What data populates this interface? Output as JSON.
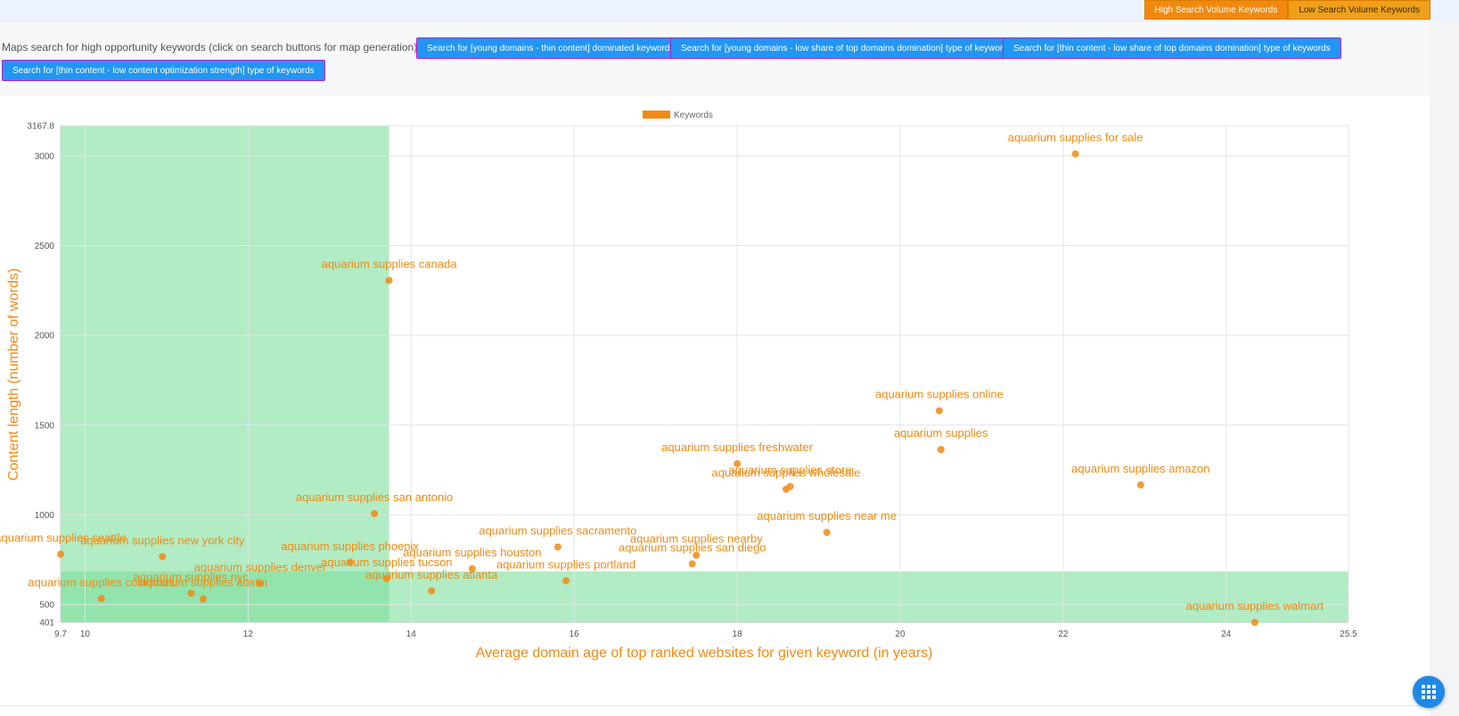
{
  "volume_toggle": {
    "high_label": "High Search Volume Keywords",
    "low_label": "Low Search Volume Keywords"
  },
  "toolbar": {
    "description": "Maps search for high opportunity keywords (click on search buttons for map generation)",
    "buttons": [
      "Search for [young domains - thin content] dominated keywords",
      "Search for [young domains - low share of top domains domination] type of keywords",
      "Search for [thin content - low share of top domains domination] type of keywords",
      "Search for [thin content - low content optimization strength] type of keywords"
    ]
  },
  "colors": {
    "accent": "#f28a12",
    "button_blue": "#2196f3",
    "zone_green": "#7ddf9d"
  },
  "chart_data": {
    "type": "scatter",
    "legend": {
      "label": "Keywords",
      "position": "top-center"
    },
    "xlabel": "Average domain age of top ranked websites for given keyword (in years)",
    "ylabel": "Content length (number of words)",
    "xlim": [
      9.7,
      25.5
    ],
    "ylim": [
      401,
      3167.8
    ],
    "xticks": [
      9.7,
      10,
      12,
      14,
      16,
      18,
      20,
      22,
      24,
      25.5
    ],
    "yticks": [
      401,
      500,
      1000,
      1500,
      2000,
      2500,
      3000,
      3167.8
    ],
    "grid": true,
    "highlight_zones": [
      {
        "x": [
          9.7,
          13.73
        ],
        "y": [
          401,
          3167.8
        ]
      },
      {
        "x": [
          9.7,
          25.5
        ],
        "y": [
          401,
          685
        ]
      }
    ],
    "points": [
      {
        "label": "aquarium supplies for sale",
        "x": 22.15,
        "y": 3011
      },
      {
        "label": "aquarium supplies canada",
        "x": 13.73,
        "y": 2306
      },
      {
        "label": "aquarium supplies online",
        "x": 20.48,
        "y": 1580
      },
      {
        "label": "aquarium supplies",
        "x": 20.5,
        "y": 1364
      },
      {
        "label": "aquarium supplies freshwater",
        "x": 18.0,
        "y": 1285
      },
      {
        "label": "aquarium supplies store",
        "x": 18.65,
        "y": 1158
      },
      {
        "label": "aquarium supplies wholesale",
        "x": 18.6,
        "y": 1143
      },
      {
        "label": "aquarium supplies amazon",
        "x": 22.95,
        "y": 1167
      },
      {
        "label": "aquarium supplies san antonio",
        "x": 13.55,
        "y": 1007
      },
      {
        "label": "aquarium supplies near me",
        "x": 19.1,
        "y": 902
      },
      {
        "label": "aquarium supplies sacramento",
        "x": 15.8,
        "y": 821
      },
      {
        "label": "aquarium supplies nearby",
        "x": 17.5,
        "y": 775
      },
      {
        "label": "aquarium supplies san diego",
        "x": 17.45,
        "y": 727
      },
      {
        "label": "aquarium supplies new york city",
        "x": 10.95,
        "y": 767
      },
      {
        "label": "aquarium supplies seattle",
        "x": 9.7,
        "y": 781
      },
      {
        "label": "aquarium supplies phoenix",
        "x": 13.25,
        "y": 735
      },
      {
        "label": "aquarium supplies houston",
        "x": 14.75,
        "y": 700
      },
      {
        "label": "aquarium supplies tucson",
        "x": 13.7,
        "y": 645
      },
      {
        "label": "aquarium supplies portland",
        "x": 15.9,
        "y": 633
      },
      {
        "label": "aquarium supplies denver",
        "x": 12.15,
        "y": 618
      },
      {
        "label": "aquarium supplies nyc",
        "x": 11.3,
        "y": 563
      },
      {
        "label": "aquarium supplies atlanta",
        "x": 14.25,
        "y": 576
      },
      {
        "label": "aquarium supplies austin",
        "x": 11.45,
        "y": 532
      },
      {
        "label": "aquarium supplies columbus",
        "x": 10.2,
        "y": 533
      },
      {
        "label": "aquarium supplies walmart",
        "x": 24.35,
        "y": 401
      }
    ]
  }
}
